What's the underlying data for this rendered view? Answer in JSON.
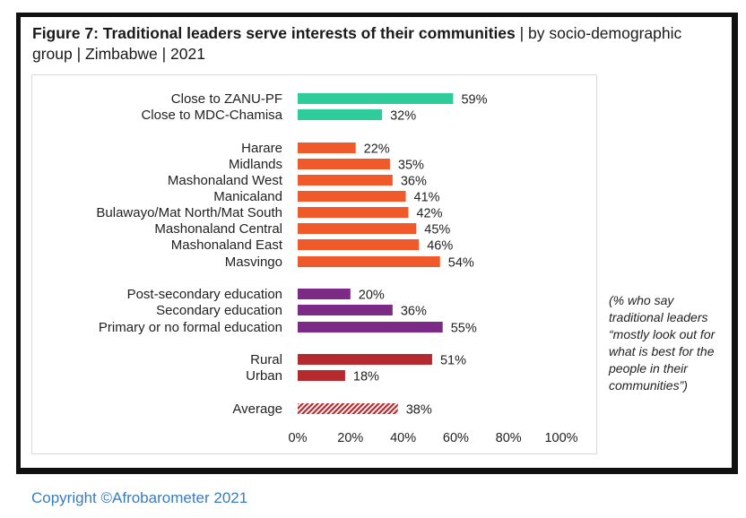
{
  "header": {
    "title_bold": "Figure 7: Traditional leaders serve interests of their communities",
    "title_rest": " | by socio-demographic group | Zimbabwe | 2021"
  },
  "note": "(% who say traditional leaders “mostly look out for what is best for the people in their communities”)",
  "footer": {
    "copyright": "Copyright ©Afrobarometer 2021"
  },
  "colors": {
    "party": "#2ecc9a",
    "province": "#f05a2b",
    "education": "#7b2a86",
    "location": "#b52a2e",
    "average": "#b52a2e"
  },
  "chart_data": {
    "type": "bar",
    "orientation": "horizontal",
    "xlim": [
      0,
      100
    ],
    "x_ticks": [
      "0%",
      "20%",
      "40%",
      "60%",
      "80%",
      "100%"
    ],
    "grid": false,
    "categories": [
      "Close to ZANU-PF",
      "Close to MDC-Chamisa",
      "Harare",
      "Midlands",
      "Mashonaland West",
      "Manicaland",
      "Bulawayo/Mat  North/Mat South",
      "Mashonaland Central",
      "Mashonaland East",
      "Masvingo",
      "Post-secondary education",
      "Secondary education",
      "Primary or no formal education",
      "Rural",
      "Urban",
      "Average"
    ],
    "values": [
      59,
      32,
      22,
      35,
      36,
      41,
      42,
      45,
      46,
      54,
      20,
      36,
      55,
      51,
      18,
      38
    ],
    "value_labels": [
      "59%",
      "32%",
      "22%",
      "35%",
      "36%",
      "41%",
      "42%",
      "45%",
      "46%",
      "54%",
      "20%",
      "36%",
      "55%",
      "51%",
      "18%",
      "38%"
    ],
    "groups": [
      "party",
      "party",
      "province",
      "province",
      "province",
      "province",
      "province",
      "province",
      "province",
      "province",
      "education",
      "education",
      "education",
      "location",
      "location",
      "average"
    ]
  }
}
